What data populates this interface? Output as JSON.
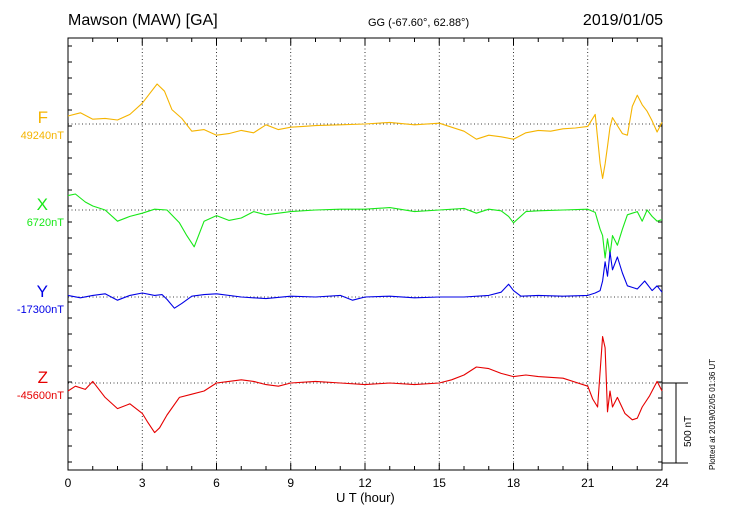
{
  "header": {
    "title": "Mawson (MAW)  [GA]",
    "coords": "GG (-67.60°,  62.88°)",
    "date": "2019/01/05"
  },
  "footer": {
    "plotted": "Plotted at 2019/02/05 01:36 UT"
  },
  "chart_data": {
    "type": "line",
    "title": "Mawson (MAW)  [GA]",
    "xlabel": "U T (hour)",
    "xlim": [
      0,
      24
    ],
    "x_ticks": [
      0,
      3,
      6,
      9,
      12,
      15,
      18,
      21,
      24
    ],
    "x_tick_labels": [
      "0",
      "3",
      "6",
      "9",
      "12",
      "15",
      "18",
      "21",
      "24"
    ],
    "y_unit": "nT",
    "scale_bar": {
      "value": 500,
      "label": "500 nT"
    },
    "grid": true,
    "series": [
      {
        "name": "F",
        "baseline_label": "49240nT",
        "baseline": 49240,
        "color": "#f5b400",
        "x": [
          0,
          0.5,
          1,
          1.5,
          2,
          2.5,
          3,
          3.3,
          3.6,
          3.9,
          4.2,
          4.6,
          5,
          5.5,
          6,
          6.5,
          7,
          7.5,
          8,
          8.5,
          9,
          9.5,
          10,
          11,
          12,
          13,
          14,
          15,
          15.5,
          16,
          16.5,
          17,
          17.5,
          18,
          18.5,
          19,
          19.5,
          20,
          20.5,
          21,
          21.3,
          21.5,
          21.6,
          21.7,
          21.8,
          21.9,
          22,
          22.2,
          22.4,
          22.6,
          22.8,
          23,
          23.2,
          23.4,
          23.6,
          23.8,
          24
        ],
        "values": [
          49290,
          49310,
          49270,
          49275,
          49265,
          49300,
          49370,
          49430,
          49490,
          49445,
          49330,
          49275,
          49195,
          49205,
          49170,
          49180,
          49200,
          49185,
          49235,
          49205,
          49220,
          49225,
          49230,
          49235,
          49240,
          49250,
          49235,
          49245,
          49220,
          49195,
          49145,
          49170,
          49160,
          49145,
          49185,
          49200,
          49195,
          49210,
          49215,
          49225,
          49300,
          48995,
          48900,
          48990,
          49100,
          49220,
          49280,
          49230,
          49180,
          49170,
          49350,
          49420,
          49360,
          49320,
          49260,
          49190,
          49250
        ]
      },
      {
        "name": "X",
        "baseline_label": "6720nT",
        "baseline": 6720,
        "color": "#18e818",
        "x": [
          0,
          0.3,
          0.7,
          1,
          1.5,
          2,
          2.5,
          3,
          3.5,
          4,
          4.5,
          4.8,
          5.1,
          5.5,
          6,
          6.5,
          7,
          7.5,
          8,
          8.5,
          9,
          10,
          11,
          12,
          13,
          14,
          15,
          16,
          16.5,
          17,
          17.5,
          17.8,
          18,
          18.5,
          19,
          20,
          21,
          21.3,
          21.5,
          21.6,
          21.7,
          21.8,
          21.9,
          22,
          22.2,
          22.4,
          22.6,
          22.8,
          23,
          23.2,
          23.4,
          23.6,
          23.8,
          24
        ],
        "values": [
          6810,
          6820,
          6770,
          6745,
          6720,
          6650,
          6680,
          6700,
          6725,
          6720,
          6640,
          6560,
          6490,
          6650,
          6685,
          6655,
          6670,
          6710,
          6690,
          6700,
          6710,
          6720,
          6725,
          6725,
          6735,
          6710,
          6720,
          6730,
          6700,
          6725,
          6715,
          6680,
          6640,
          6710,
          6715,
          6720,
          6725,
          6705,
          6600,
          6560,
          6420,
          6540,
          6440,
          6560,
          6500,
          6600,
          6690,
          6700,
          6710,
          6650,
          6720,
          6680,
          6650,
          6660
        ]
      },
      {
        "name": "Y",
        "baseline_label": "-17300nT",
        "baseline": -17300,
        "color": "#0000e6",
        "x": [
          0,
          0.5,
          1,
          1.5,
          2,
          2.5,
          3,
          3.5,
          3.8,
          4,
          4.3,
          4.6,
          5,
          5.5,
          6,
          7,
          8,
          9,
          10,
          11,
          11.5,
          12,
          13,
          14,
          15,
          16,
          17,
          17.5,
          17.8,
          18,
          18.3,
          19,
          20,
          21,
          21.3,
          21.5,
          21.6,
          21.7,
          21.8,
          21.9,
          22,
          22.2,
          22.4,
          22.6,
          22.8,
          23,
          23.3,
          23.6,
          23.8,
          24
        ],
        "values": [
          -17290,
          -17305,
          -17290,
          -17280,
          -17320,
          -17290,
          -17275,
          -17290,
          -17285,
          -17315,
          -17370,
          -17340,
          -17295,
          -17285,
          -17280,
          -17300,
          -17310,
          -17295,
          -17300,
          -17290,
          -17320,
          -17300,
          -17295,
          -17305,
          -17300,
          -17300,
          -17290,
          -17270,
          -17220,
          -17260,
          -17295,
          -17290,
          -17295,
          -17290,
          -17275,
          -17260,
          -17200,
          -17080,
          -17170,
          -17020,
          -17130,
          -17050,
          -17150,
          -17230,
          -17240,
          -17250,
          -17200,
          -17260,
          -17230,
          -17270
        ]
      },
      {
        "name": "Z",
        "baseline_label": "-45600nT",
        "baseline": -45600,
        "color": "#e60000",
        "x": [
          0,
          0.3,
          0.7,
          1,
          1.5,
          2,
          2.5,
          3,
          3.2,
          3.5,
          3.7,
          4,
          4.5,
          5,
          5.5,
          6,
          6.5,
          7,
          7.5,
          8,
          8.5,
          9,
          10,
          11,
          12,
          13,
          14,
          15,
          15.5,
          16,
          16.5,
          17,
          17.5,
          18,
          18.5,
          19,
          20,
          21,
          21.2,
          21.4,
          21.6,
          21.7,
          21.8,
          21.9,
          22,
          22.2,
          22.5,
          22.8,
          23,
          23.2,
          23.5,
          23.8,
          24
        ],
        "values": [
          -45650,
          -45620,
          -45640,
          -45590,
          -45690,
          -45760,
          -45730,
          -45790,
          -45840,
          -45910,
          -45880,
          -45800,
          -45690,
          -45670,
          -45650,
          -45600,
          -45590,
          -45580,
          -45590,
          -45610,
          -45620,
          -45600,
          -45590,
          -45600,
          -45610,
          -45600,
          -45610,
          -45600,
          -45580,
          -45550,
          -45500,
          -45510,
          -45540,
          -45560,
          -45550,
          -45560,
          -45570,
          -45620,
          -45700,
          -45750,
          -45310,
          -45380,
          -45780,
          -45650,
          -45750,
          -45690,
          -45790,
          -45830,
          -45820,
          -45750,
          -45680,
          -45590,
          -45650
        ]
      }
    ]
  }
}
